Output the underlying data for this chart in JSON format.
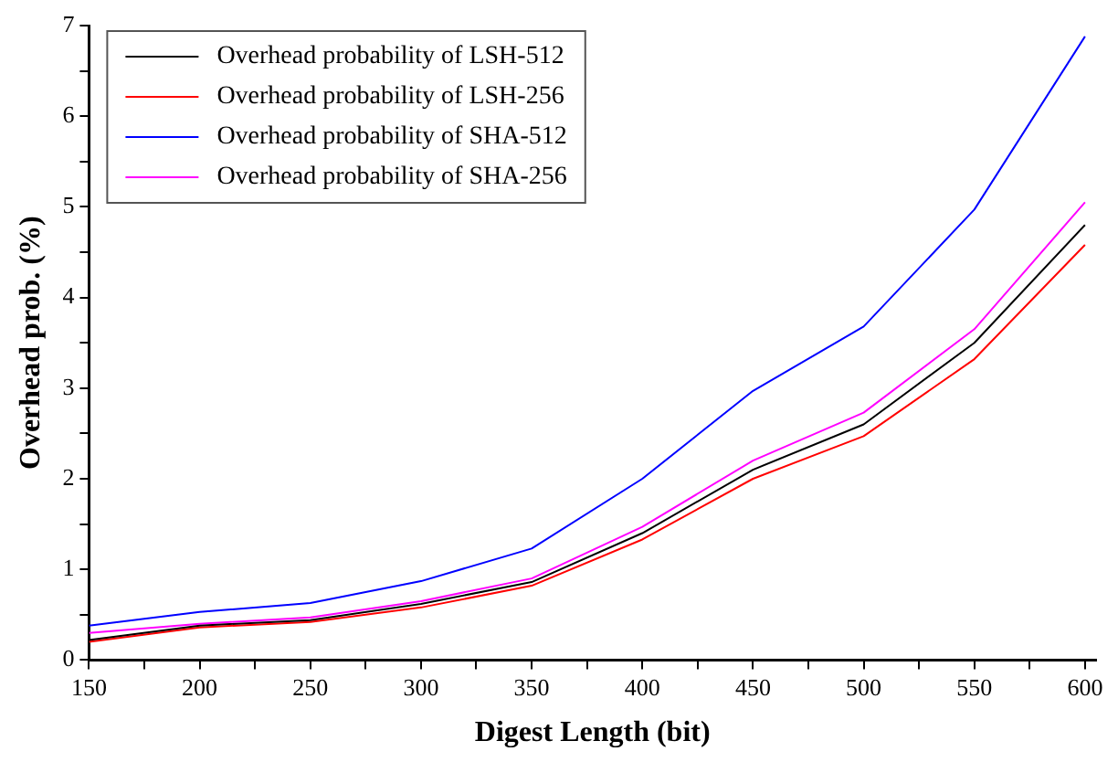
{
  "chart_data": {
    "type": "line",
    "xlabel": "Digest Length (bit)",
    "ylabel": "Overhead prob. (%)",
    "x": [
      150,
      200,
      250,
      300,
      350,
      400,
      450,
      500,
      550,
      600
    ],
    "series": [
      {
        "name": "Overhead probability of LSH-512",
        "color": "#000000",
        "values": [
          0.22,
          0.38,
          0.44,
          0.62,
          0.86,
          1.4,
          2.1,
          2.6,
          3.5,
          4.8
        ]
      },
      {
        "name": "Overhead probability of LSH-256",
        "color": "#ff0000",
        "values": [
          0.2,
          0.36,
          0.42,
          0.58,
          0.82,
          1.33,
          2.0,
          2.47,
          3.32,
          4.58
        ]
      },
      {
        "name": "Overhead probability of SHA-512",
        "color": "#0000ff",
        "values": [
          0.38,
          0.53,
          0.63,
          0.87,
          1.23,
          2.0,
          2.97,
          3.68,
          4.97,
          6.88
        ]
      },
      {
        "name": "Overhead probability of SHA-256",
        "color": "#ff00ff",
        "values": [
          0.3,
          0.4,
          0.47,
          0.65,
          0.9,
          1.47,
          2.2,
          2.73,
          3.65,
          5.05
        ]
      }
    ],
    "xlim": [
      150,
      605
    ],
    "xticks": [
      150,
      {
        "value": 175,
        "label": null
      },
      200,
      {
        "value": 225,
        "label": null
      },
      250,
      {
        "value": 275,
        "label": null
      },
      300,
      {
        "value": 325,
        "label": null
      },
      350,
      {
        "value": 375,
        "label": null
      },
      400,
      {
        "value": 425,
        "label": null
      },
      450,
      {
        "value": 475,
        "label": null
      },
      500,
      {
        "value": 525,
        "label": null
      },
      550,
      {
        "value": 575,
        "label": null
      },
      600
    ],
    "ylim": [
      0,
      7
    ],
    "yticks": [
      0,
      {
        "value": 0.5,
        "label": null
      },
      1,
      {
        "value": 1.5,
        "label": null
      },
      2,
      {
        "value": 2.5,
        "label": null
      },
      3,
      {
        "value": 3.5,
        "label": null
      },
      4,
      {
        "value": 4.5,
        "label": null
      },
      5,
      {
        "value": 5.5,
        "label": null
      },
      6,
      {
        "value": 6.5,
        "label": null
      },
      7
    ],
    "grid": false,
    "legend": "top left",
    "marker": "none",
    "line_style": "solid"
  }
}
